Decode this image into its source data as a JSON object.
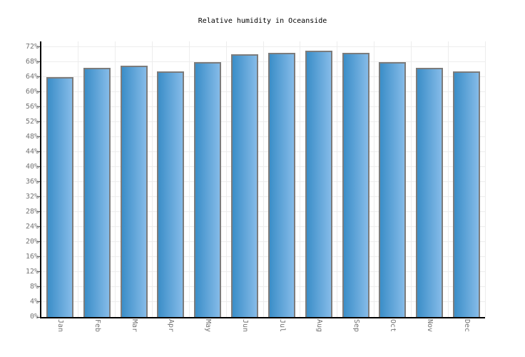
{
  "page": {
    "background": "#ffffff"
  },
  "chart_data": {
    "type": "bar",
    "title": "Relative humidity in Oceanside",
    "categories": [
      "Jan",
      "Feb",
      "Mar",
      "Apr",
      "May",
      "Jun",
      "Jul",
      "Aug",
      "Sep",
      "Oct",
      "Nov",
      "Dec"
    ],
    "values": [
      64,
      66.5,
      67,
      65.5,
      68,
      70,
      70.5,
      71,
      70.5,
      68,
      66.5,
      65.5
    ],
    "unit": "%",
    "xlabel": "",
    "ylabel": "",
    "ylim": [
      0,
      73.5
    ],
    "ytick_step": 4,
    "grid": true,
    "legend_position": "none",
    "colors": {
      "bar_gradient_left": "#3b8ec8",
      "bar_gradient_right": "#85bbe8",
      "bar_border": "#7c7c7c",
      "gridline": "#ededed",
      "axis": "#000000",
      "tick_mark": "#4d4d4d",
      "tick_label": "#737373",
      "title": "#000000"
    }
  }
}
